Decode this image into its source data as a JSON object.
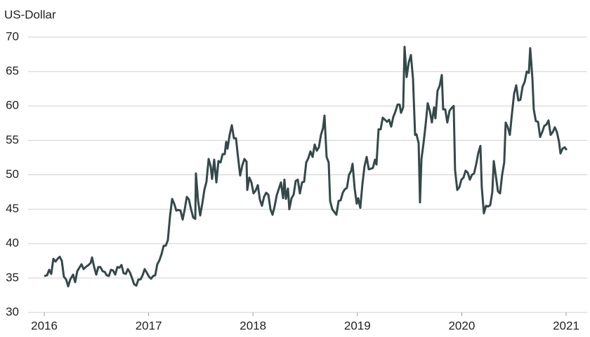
{
  "chart_data": {
    "type": "line",
    "y_label": "US-Dollar",
    "x": [
      2016.0,
      2016.027,
      2016.047,
      2016.067,
      2016.087,
      2016.108,
      2016.128,
      2016.148,
      2016.168,
      2016.188,
      2016.209,
      2016.229,
      2016.249,
      2016.276,
      2016.296,
      2016.316,
      2016.336,
      2016.357,
      2016.377,
      2016.397,
      2016.424,
      2016.444,
      2016.458,
      2016.478,
      2016.498,
      2016.518,
      2016.538,
      2016.559,
      2016.579,
      2016.599,
      2016.619,
      2016.639,
      2016.659,
      2016.68,
      2016.7,
      2016.72,
      2016.74,
      2016.76,
      2016.781,
      2016.801,
      2016.821,
      2016.841,
      2016.861,
      2016.882,
      2016.902,
      2016.922,
      2016.942,
      2016.962,
      2016.982,
      2017.003,
      2017.023,
      2017.043,
      2017.063,
      2017.083,
      2017.104,
      2017.124,
      2017.144,
      2017.164,
      2017.184,
      2017.205,
      2017.225,
      2017.245,
      2017.265,
      2017.285,
      2017.305,
      2017.326,
      2017.346,
      2017.366,
      2017.386,
      2017.406,
      2017.427,
      2017.447,
      2017.453,
      2017.474,
      2017.494,
      2017.514,
      2017.534,
      2017.554,
      2017.575,
      2017.595,
      2017.608,
      2017.628,
      2017.649,
      2017.669,
      2017.689,
      2017.709,
      2017.729,
      2017.743,
      2017.756,
      2017.776,
      2017.797,
      2017.817,
      2017.837,
      2017.857,
      2017.877,
      2017.898,
      2017.918,
      2017.938,
      2017.945,
      2017.965,
      2017.985,
      2018.005,
      2018.025,
      2018.046,
      2018.066,
      2018.086,
      2018.106,
      2018.126,
      2018.147,
      2018.167,
      2018.187,
      2018.207,
      2018.227,
      2018.248,
      2018.268,
      2018.288,
      2018.301,
      2018.315,
      2018.335,
      2018.348,
      2018.369,
      2018.389,
      2018.409,
      2018.429,
      2018.449,
      2018.47,
      2018.49,
      2018.51,
      2018.53,
      2018.55,
      2018.571,
      2018.591,
      2018.611,
      2018.631,
      2018.651,
      2018.671,
      2018.685,
      2018.705,
      2018.725,
      2018.739,
      2018.759,
      2018.779,
      2018.799,
      2018.82,
      2018.84,
      2018.86,
      2018.88,
      2018.9,
      2018.92,
      2018.941,
      2018.954,
      2018.974,
      2018.994,
      2019.008,
      2019.028,
      2019.048,
      2019.068,
      2019.089,
      2019.109,
      2019.129,
      2019.149,
      2019.169,
      2019.183,
      2019.203,
      2019.223,
      2019.243,
      2019.264,
      2019.284,
      2019.304,
      2019.324,
      2019.344,
      2019.365,
      2019.385,
      2019.405,
      2019.418,
      2019.439,
      2019.452,
      2019.472,
      2019.492,
      2019.513,
      2019.533,
      2019.553,
      2019.566,
      2019.587,
      2019.6,
      2019.614,
      2019.634,
      2019.654,
      2019.674,
      2019.694,
      2019.714,
      2019.735,
      2019.748,
      2019.768,
      2019.788,
      2019.809,
      2019.822,
      2019.842,
      2019.862,
      2019.883,
      2019.903,
      2019.923,
      2019.936,
      2019.957,
      2019.977,
      2019.997,
      2020.017,
      2020.037,
      2020.058,
      2020.078,
      2020.098,
      2020.118,
      2020.138,
      2020.159,
      2020.179,
      2020.192,
      2020.212,
      2020.233,
      2020.253,
      2020.273,
      2020.293,
      2020.307,
      2020.327,
      2020.347,
      2020.367,
      2020.387,
      2020.407,
      2020.421,
      2020.441,
      2020.461,
      2020.482,
      2020.502,
      2020.522,
      2020.542,
      2020.562,
      2020.583,
      2020.603,
      2020.623,
      2020.643,
      2020.656,
      2020.677,
      2020.69,
      2020.71,
      2020.731,
      2020.751,
      2020.771,
      2020.791,
      2020.811,
      2020.831,
      2020.852,
      2020.872,
      2020.892,
      2020.912,
      2020.932,
      2020.946,
      2020.966,
      2020.986,
      2021.006
    ],
    "series": [
      {
        "name": "US-Dollar",
        "color": "#34494a",
        "values": [
          35.3,
          35.4,
          36.2,
          35.6,
          37.8,
          37.4,
          37.8,
          38.1,
          37.5,
          35.2,
          34.8,
          33.8,
          34.8,
          35.5,
          34.4,
          36.0,
          36.5,
          37.0,
          36.3,
          36.6,
          36.9,
          37.2,
          38.0,
          36.6,
          35.5,
          36.6,
          36.6,
          36.0,
          35.9,
          35.4,
          35.3,
          36.2,
          36.1,
          35.5,
          36.6,
          36.5,
          36.9,
          35.7,
          35.6,
          36.3,
          35.8,
          35.0,
          34.1,
          33.9,
          34.8,
          34.8,
          35.4,
          36.3,
          35.8,
          35.2,
          34.9,
          35.3,
          35.4,
          37.0,
          37.6,
          38.5,
          39.7,
          39.7,
          40.5,
          44.0,
          46.5,
          45.8,
          44.8,
          44.9,
          44.8,
          43.5,
          45.0,
          46.8,
          46.4,
          45.0,
          43.8,
          43.6,
          50.2,
          46.2,
          44.1,
          45.8,
          47.8,
          49.0,
          52.3,
          51.2,
          49.4,
          52.2,
          48.9,
          52.0,
          51.8,
          53.0,
          53.0,
          54.8,
          53.8,
          55.8,
          57.2,
          55.3,
          55.3,
          52.5,
          49.9,
          51.4,
          52.3,
          51.9,
          47.8,
          49.6,
          48.9,
          47.3,
          47.7,
          48.5,
          46.4,
          45.5,
          46.8,
          47.4,
          47.1,
          45.0,
          44.2,
          45.4,
          47.0,
          48.0,
          48.9,
          46.6,
          49.3,
          46.5,
          48.0,
          45.0,
          46.6,
          47.1,
          49.1,
          49.3,
          47.3,
          48.9,
          49.0,
          51.8,
          52.4,
          53.4,
          52.6,
          54.4,
          53.5,
          54.0,
          55.8,
          56.8,
          58.6,
          52.6,
          51.8,
          46.2,
          45.0,
          44.6,
          44.2,
          46.2,
          46.3,
          47.4,
          47.9,
          48.1,
          50.0,
          50.6,
          51.6,
          48.0,
          45.8,
          46.6,
          45.2,
          48.6,
          51.2,
          52.6,
          50.8,
          50.9,
          51.0,
          52.2,
          51.5,
          56.6,
          56.6,
          58.3,
          58.0,
          57.7,
          58.0,
          57.0,
          58.4,
          59.2,
          60.2,
          60.2,
          59.0,
          59.8,
          68.6,
          64.2,
          66.3,
          67.4,
          64.0,
          55.8,
          55.9,
          54.6,
          46.0,
          52.3,
          54.6,
          57.3,
          60.4,
          59.3,
          57.6,
          59.8,
          58.2,
          62.2,
          62.9,
          64.5,
          59.5,
          59.5,
          57.6,
          59.3,
          59.7,
          60.0,
          50.7,
          47.8,
          48.2,
          49.3,
          49.6,
          50.6,
          50.3,
          49.3,
          50.0,
          50.2,
          51.5,
          53.2,
          54.2,
          48.2,
          44.4,
          45.5,
          45.4,
          45.6,
          47.5,
          52.0,
          49.8,
          47.6,
          47.3,
          50.0,
          51.8,
          57.6,
          56.9,
          55.8,
          59.0,
          61.8,
          63.0,
          60.8,
          60.9,
          62.8,
          63.5,
          65.0,
          64.8,
          68.4,
          64.0,
          59.5,
          57.8,
          57.7,
          55.5,
          56.2,
          57.1,
          57.3,
          57.9,
          55.8,
          56.2,
          56.9,
          56.2,
          54.8,
          53.1,
          53.8,
          54.0,
          53.6
        ]
      }
    ],
    "xlim": [
      2015.845,
      2021.202
    ],
    "xticks": [
      2016,
      2017,
      2018,
      2019,
      2020,
      2021
    ],
    "ylim": [
      30,
      70
    ],
    "yticks": [
      30,
      35,
      40,
      45,
      50,
      55,
      60,
      65,
      70
    ],
    "grid": true
  }
}
